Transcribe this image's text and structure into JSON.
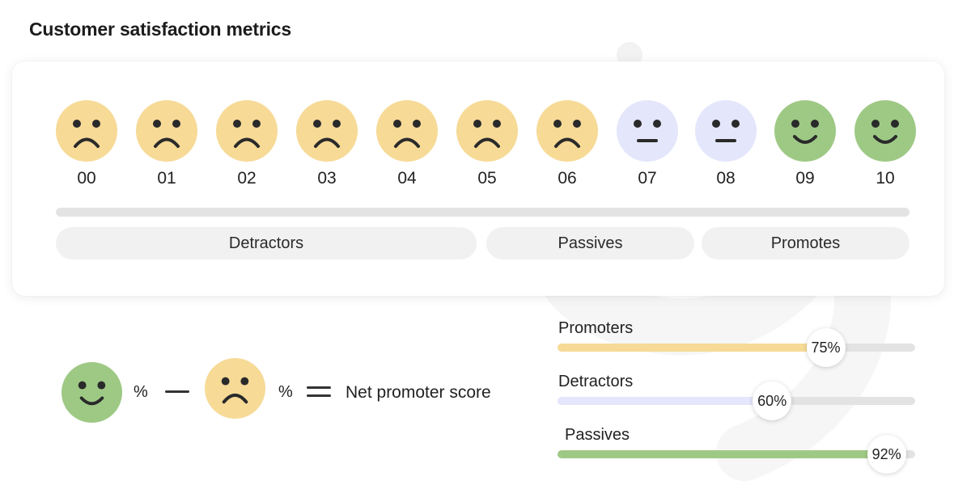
{
  "title": "Customer satisfaction metrics",
  "colors": {
    "detractor": "#f6da96",
    "passive": "#e4e6fb",
    "promoter": "#9ec985",
    "track": "#e3e3e3",
    "pill": "#f1f1f1",
    "face_ink": "#2a2a2a"
  },
  "scale": [
    {
      "label": "00",
      "mood": "sad"
    },
    {
      "label": "01",
      "mood": "sad"
    },
    {
      "label": "02",
      "mood": "sad"
    },
    {
      "label": "03",
      "mood": "sad"
    },
    {
      "label": "04",
      "mood": "sad"
    },
    {
      "label": "05",
      "mood": "sad"
    },
    {
      "label": "06",
      "mood": "sad"
    },
    {
      "label": "07",
      "mood": "neutral"
    },
    {
      "label": "08",
      "mood": "neutral"
    },
    {
      "label": "09",
      "mood": "happy"
    },
    {
      "label": "10",
      "mood": "happy"
    }
  ],
  "groups": {
    "detractors": "Detractors",
    "passives": "Passives",
    "promoters": "Promotes"
  },
  "formula": {
    "promoter_icon": "happy-face-icon",
    "detractor_icon": "sad-face-icon",
    "percent_1": "%",
    "percent_2": "%",
    "result_label": "Net promoter score"
  },
  "metrics": [
    {
      "label": "Promoters",
      "value": 75,
      "value_label": "75%",
      "color": "#f6da96"
    },
    {
      "label": "Detractors",
      "value": 60,
      "value_label": "60%",
      "color": "#e4e6fb"
    },
    {
      "label": "Passives",
      "value": 92,
      "value_label": "92%",
      "color": "#9ec985"
    }
  ]
}
